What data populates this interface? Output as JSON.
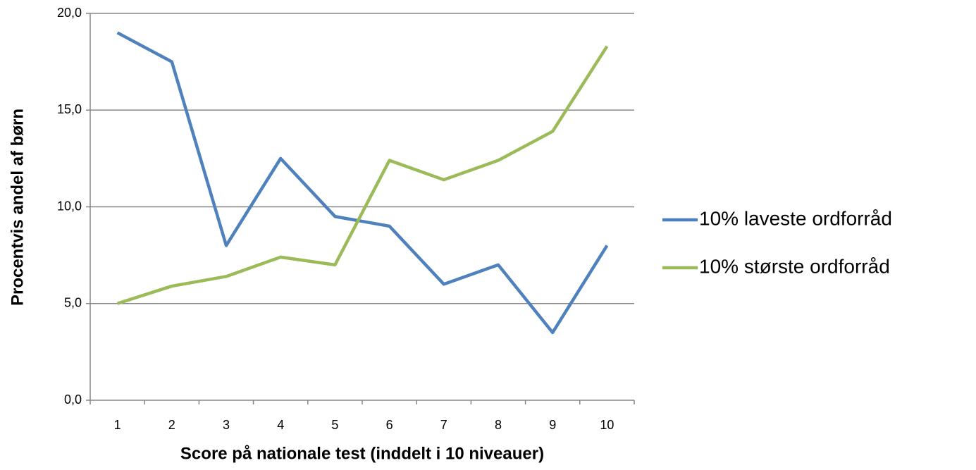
{
  "chart_data": {
    "type": "line",
    "categories": [
      "1",
      "2",
      "3",
      "4",
      "5",
      "6",
      "7",
      "8",
      "9",
      "10"
    ],
    "series": [
      {
        "name": "10% laveste ordforråd",
        "color": "#4f81bd",
        "values": [
          19.0,
          17.5,
          8.0,
          12.5,
          9.5,
          9.0,
          6.0,
          7.0,
          3.5,
          8.0
        ]
      },
      {
        "name": "10% største ordforråd",
        "color": "#9bbb59",
        "values": [
          5.0,
          5.9,
          6.4,
          7.4,
          7.0,
          12.4,
          11.4,
          12.4,
          13.9,
          18.3
        ]
      }
    ],
    "x_label": "Score på nationale test (inddelt i 10 niveauer)",
    "y_label": "Procentvis andel af børn",
    "ylim": [
      0,
      20
    ],
    "yticks": [
      {
        "value": 0,
        "label": "0,0"
      },
      {
        "value": 5,
        "label": "5,0"
      },
      {
        "value": 10,
        "label": "10,0"
      },
      {
        "value": 15,
        "label": "15,0"
      },
      {
        "value": 20,
        "label": "20,0"
      }
    ],
    "grid": true,
    "legend": "right"
  }
}
